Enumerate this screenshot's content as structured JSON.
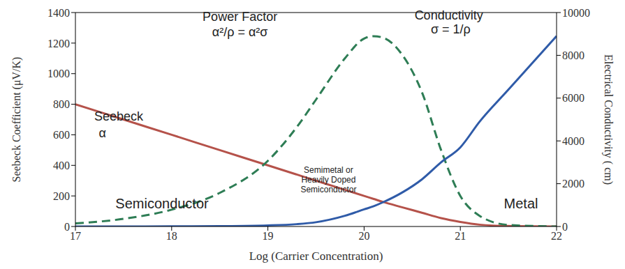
{
  "chart_data": {
    "type": "line",
    "x_label": "Log (Carrier Concentration)",
    "y_label": "Seebeck Coefficient (μV/K)",
    "y2_label": "Electrical Conductivity ( cm)",
    "x": [
      17,
      17.5,
      18,
      18.5,
      19,
      19.3,
      19.5,
      19.8,
      20,
      20.1,
      20.2,
      20.4,
      20.6,
      20.8,
      21,
      21.2,
      21.5,
      22
    ],
    "xlim": [
      17,
      22
    ],
    "xticks": [
      17,
      18,
      19,
      20,
      21,
      22
    ],
    "ylim": [
      0,
      1400
    ],
    "yticks": [
      0,
      200,
      400,
      600,
      800,
      1000,
      1200,
      1400
    ],
    "y2lim": [
      0,
      10000
    ],
    "y2ticks": [
      0,
      2000,
      4000,
      6000,
      8000,
      10000
    ],
    "grid": false,
    "series": [
      {
        "name": "Seebeck",
        "color": "#b5524a",
        "line_style": "solid",
        "values": [
          800,
          700,
          600,
          500,
          400,
          340,
          300,
          240,
          200,
          180,
          160,
          125,
          90,
          55,
          30,
          12,
          3,
          0
        ]
      },
      {
        "name": "Power Factor",
        "color": "#2e7d55",
        "line_style": "dashed",
        "values": [
          20,
          50,
          110,
          220,
          430,
          650,
          830,
          1100,
          1230,
          1245,
          1235,
          1120,
          880,
          500,
          200,
          70,
          10,
          0
        ]
      },
      {
        "name": "Conductivity",
        "color": "#2f5ba8",
        "line_style": "solid",
        "axis": "y2",
        "values": [
          0,
          0,
          5,
          15,
          50,
          110,
          200,
          500,
          800,
          950,
          1140,
          1600,
          2200,
          3000,
          3700,
          4900,
          6400,
          8900
        ]
      }
    ],
    "annotations": [
      {
        "text": "α"
      },
      {
        "text": "α²/ρ = α²σ"
      },
      {
        "text": "σ = 1/ρ"
      },
      {
        "text": "Semiconductor"
      },
      {
        "text": "Semimetal or Heavily Doped Semiconductor",
        "lines": [
          "Semimetal or",
          "Heavily Doped",
          "Semiconductor"
        ]
      },
      {
        "text": "Metal"
      }
    ]
  }
}
